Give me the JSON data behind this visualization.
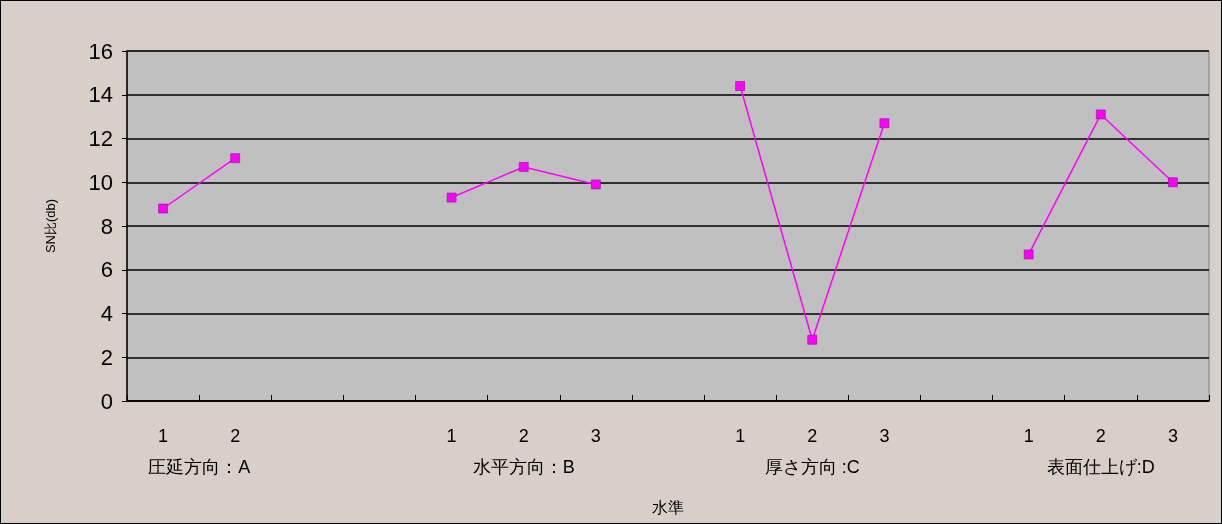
{
  "chart_data": {
    "type": "line",
    "xlabel": "水準",
    "ylabel": "SN比(db)",
    "categories": [
      "1",
      "2",
      null,
      null,
      "1",
      "2",
      "3",
      null,
      "1",
      "2",
      "3",
      null,
      "1",
      "2",
      "3"
    ],
    "series": [
      {
        "color": "#ff00ff",
        "values": [
          8.8,
          11.1,
          null,
          null,
          9.3,
          10.7,
          9.9,
          null,
          14.4,
          2.8,
          12.7,
          null,
          6.7,
          13.1,
          10.0
        ]
      }
    ],
    "annotations": [
      "圧延方向：A",
      "水平方向：B",
      "厚さ方向 :C",
      "表面仕上げ:D"
    ],
    "ylim": [
      0,
      16
    ],
    "yticks": [
      0,
      2,
      4,
      6,
      8,
      10,
      12,
      14,
      16
    ],
    "grid": "y",
    "marker": "square",
    "line_style": "solid"
  }
}
